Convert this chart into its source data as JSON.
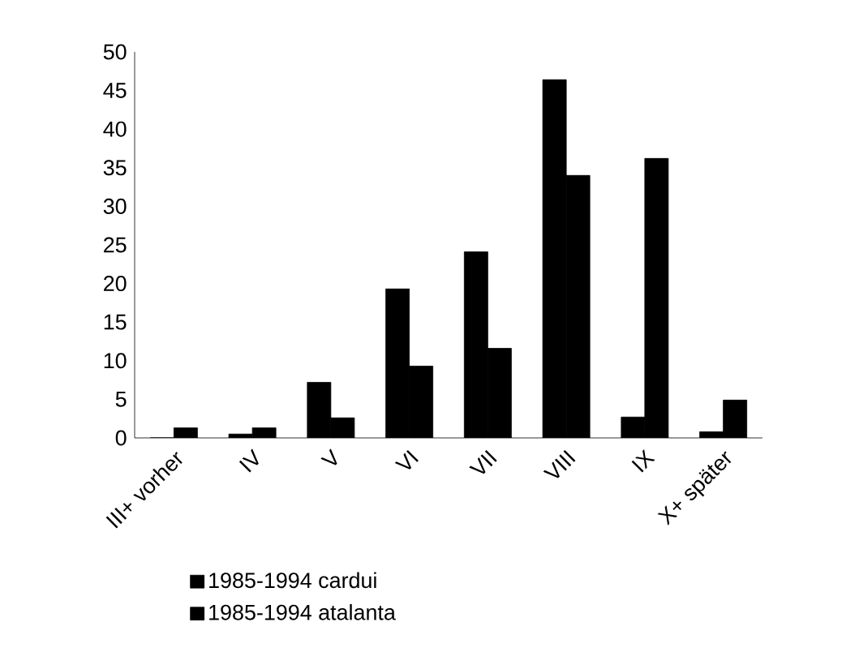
{
  "chart_data": {
    "type": "bar",
    "categories": [
      "III+ vorher",
      "IV",
      "V",
      "VI",
      "VII",
      "VIII",
      "IX",
      "X+ später"
    ],
    "series": [
      {
        "name": "1985-1994 cardui",
        "color": "#000000",
        "values": [
          0,
          0.5,
          7.2,
          19.3,
          24.1,
          46.4,
          2.7,
          0.8
        ]
      },
      {
        "name": "1985-1994 atalanta",
        "color": "#000000",
        "values": [
          1.3,
          1.3,
          2.6,
          9.3,
          11.6,
          34.0,
          36.2,
          4.9
        ]
      }
    ],
    "ylim": [
      0,
      50
    ],
    "yticks": [
      0,
      5,
      10,
      15,
      20,
      25,
      30,
      35,
      40,
      45,
      50
    ],
    "legend": "bottom",
    "grid": false
  }
}
